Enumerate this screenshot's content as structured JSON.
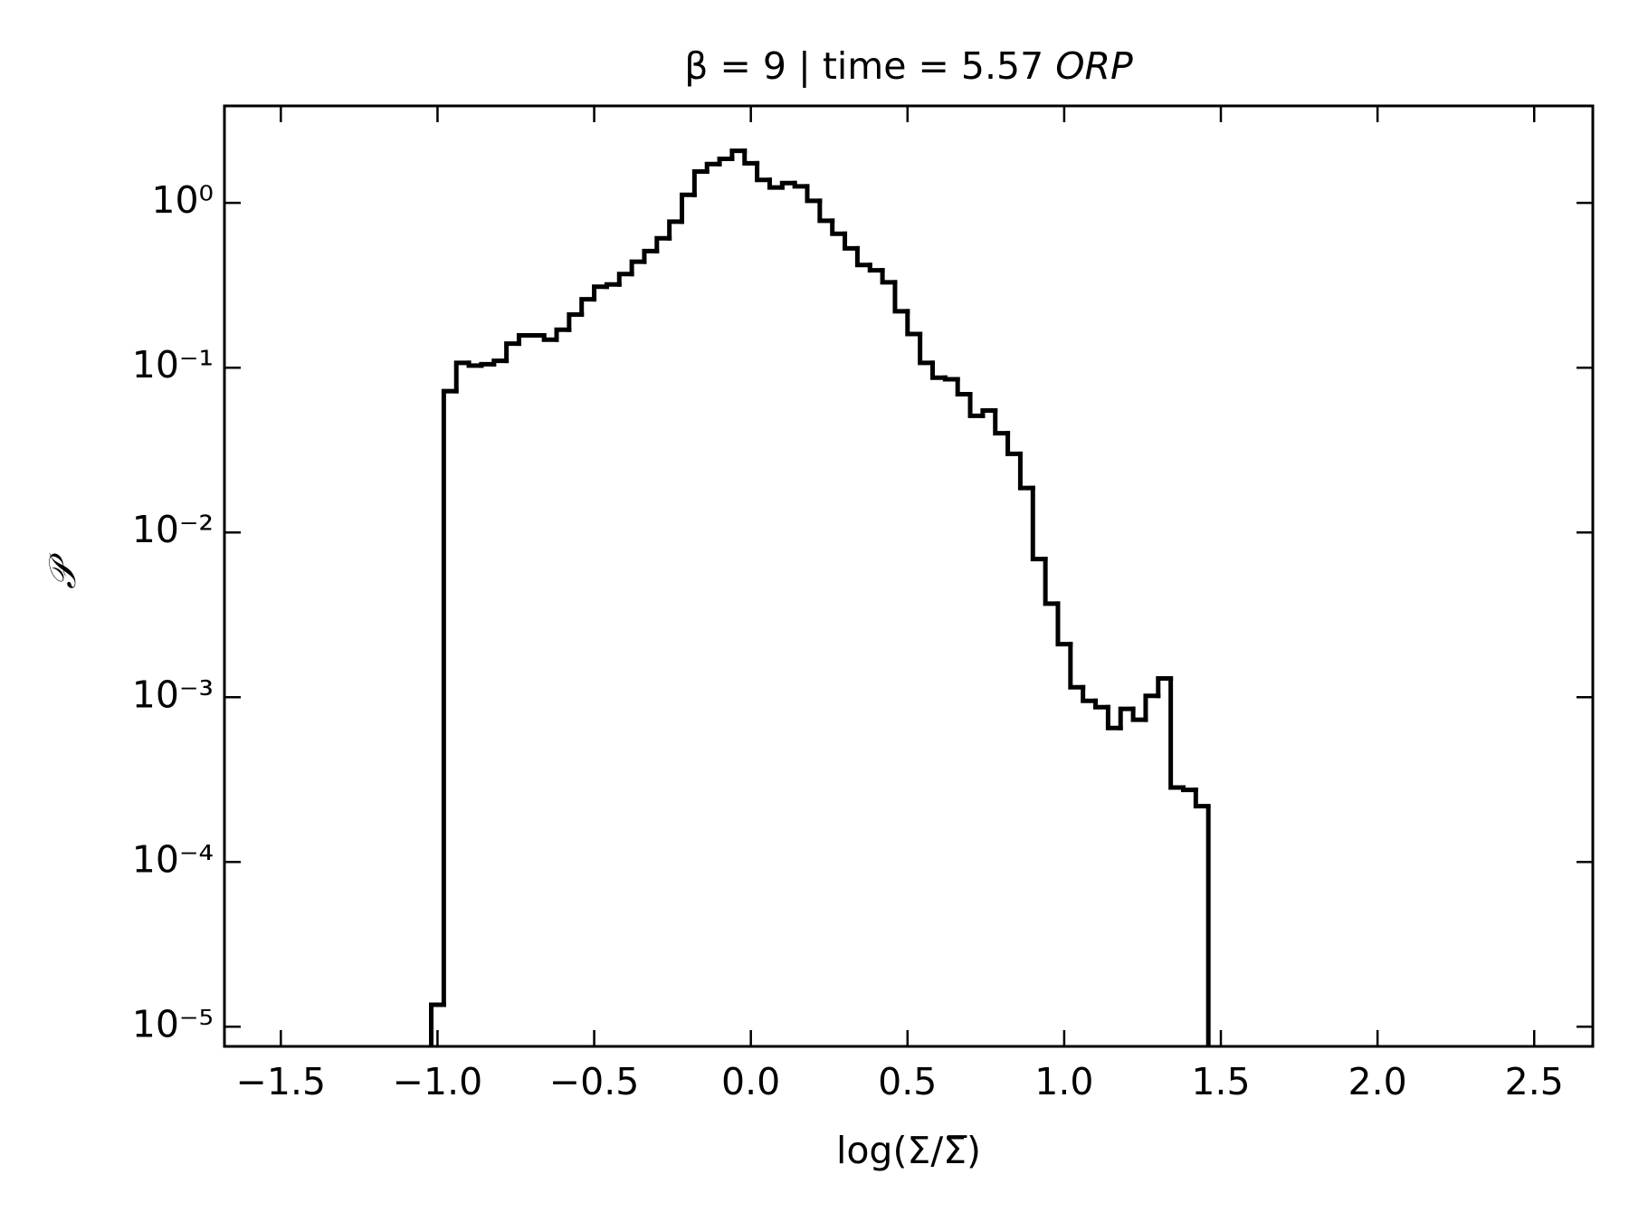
{
  "chart_data": {
    "type": "histogram",
    "title": "β = 9 | time = 5.57",
    "title_unit": "ORP",
    "xlabel": "log(Σ/Σ̅)",
    "ylabel": "𝒫",
    "bins": [
      -1.02,
      -0.98,
      -0.94,
      -0.9,
      -0.86,
      -0.82,
      -0.78,
      -0.74,
      -0.7,
      -0.66,
      -0.62,
      -0.58,
      -0.54,
      -0.5,
      -0.46,
      -0.42,
      -0.38,
      -0.34,
      -0.3,
      -0.26,
      -0.22,
      -0.18,
      -0.14,
      -0.1,
      -0.06,
      -0.02,
      0.02,
      0.06,
      0.1,
      0.14,
      0.18,
      0.22,
      0.26,
      0.3,
      0.34,
      0.38,
      0.42,
      0.46,
      0.5,
      0.54,
      0.58,
      0.62,
      0.66,
      0.7,
      0.74,
      0.78,
      0.82,
      0.86,
      0.9,
      0.94,
      0.98,
      1.02,
      1.06,
      1.1,
      1.14,
      1.18,
      1.22,
      1.26,
      1.3,
      1.34,
      1.38,
      1.42,
      1.46
    ],
    "values": [
      1.36e-05,
      0.072,
      0.107,
      0.103,
      0.105,
      0.11,
      0.14,
      0.157,
      0.157,
      0.148,
      0.17,
      0.21,
      0.26,
      0.31,
      0.32,
      0.37,
      0.44,
      0.51,
      0.61,
      0.77,
      1.12,
      1.55,
      1.72,
      1.85,
      2.07,
      1.74,
      1.38,
      1.24,
      1.32,
      1.26,
      1.03,
      0.78,
      0.65,
      0.53,
      0.42,
      0.39,
      0.33,
      0.22,
      0.16,
      0.107,
      0.087,
      0.085,
      0.069,
      0.051,
      0.055,
      0.04,
      0.03,
      0.0186,
      0.0069,
      0.0037,
      0.0021,
      0.00115,
      0.00095,
      0.00087,
      0.00065,
      0.00085,
      0.00073,
      0.00102,
      0.0013,
      0.000283,
      0.000274,
      0.000218
    ],
    "color": "#000000",
    "xlim": [
      -1.68,
      2.687
    ],
    "xticks": [
      {
        "value": -1.5,
        "label": "−1.5"
      },
      {
        "value": -1.0,
        "label": "−1.0"
      },
      {
        "value": -0.5,
        "label": "−0.5"
      },
      {
        "value": 0.0,
        "label": "0.0"
      },
      {
        "value": 0.5,
        "label": "0.5"
      },
      {
        "value": 1.0,
        "label": "1.0"
      },
      {
        "value": 1.5,
        "label": "1.5"
      },
      {
        "value": 2.0,
        "label": "2.0"
      },
      {
        "value": 2.5,
        "label": "2.5"
      }
    ],
    "ylim": [
      7.6e-06,
      3.88
    ],
    "ylog": true,
    "yticks": [
      {
        "value": 1e-05,
        "label": "10⁻⁵"
      },
      {
        "value": 0.0001,
        "label": "10⁻⁴"
      },
      {
        "value": 0.001,
        "label": "10⁻³"
      },
      {
        "value": 0.01,
        "label": "10⁻²"
      },
      {
        "value": 0.1,
        "label": "10⁻¹"
      },
      {
        "value": 1,
        "label": "10⁰"
      }
    ]
  }
}
